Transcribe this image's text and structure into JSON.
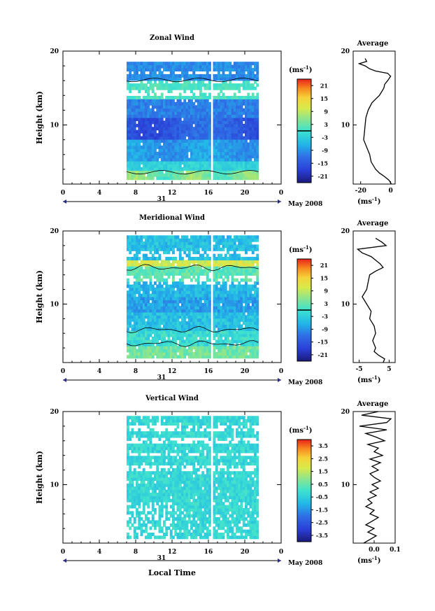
{
  "figure": {
    "date_label": "May 2008",
    "day_label": "31",
    "xlabel": "Local Time",
    "ylabel": "Height (km)",
    "colorbar_unit_base": "(ms",
    "colorbar_unit_exp": "-1",
    "colorbar_unit_close": ")",
    "avg_title": "Average",
    "avg_unit_base": "(ms",
    "avg_unit_exp": "-1",
    "avg_unit_close": ")"
  },
  "chart_data": [
    {
      "type": "heatmap",
      "title": "Zonal Wind",
      "xlabel": "Local Time",
      "ylabel": "Height (km)",
      "xlim": [
        0,
        24
      ],
      "ylim": [
        2,
        20
      ],
      "xticks": [
        "0",
        "4",
        "8",
        "12",
        "16",
        "20",
        "0"
      ],
      "yticks": [
        "10",
        "20"
      ],
      "data_time_range": [
        7,
        21.5
      ],
      "data_gap_hours": [
        16.2,
        16.5
      ],
      "contour_levels": [
        0
      ],
      "colorbar": {
        "unit": "ms-1",
        "ticks": [
          "21",
          "15",
          "9",
          "3",
          "-3",
          "-9",
          "-15",
          "-21"
        ],
        "range": [
          -24,
          24
        ],
        "zero_line": true
      },
      "profile": {
        "title": "Average",
        "xlabel": "ms-1",
        "xticks": [
          "-20",
          "0"
        ],
        "xlim": [
          -25,
          3
        ],
        "heights": [
          2.0,
          2.5,
          3.0,
          3.5,
          4.0,
          5.0,
          6.0,
          7.0,
          8.0,
          9.0,
          10.0,
          11.0,
          12.0,
          13.0,
          13.5,
          14.0,
          14.5,
          15.0,
          15.5,
          16.0,
          16.3,
          16.6,
          17.0,
          17.3,
          17.6,
          18.0,
          18.3,
          18.6,
          19.0
        ],
        "values": [
          0.5,
          -1.0,
          -4.0,
          -7.5,
          -10.0,
          -13.0,
          -14.0,
          -16.0,
          -18.0,
          -17.5,
          -17.0,
          -16.5,
          -15.0,
          -12.5,
          -10.0,
          -7.5,
          -6.0,
          -4.5,
          -4.0,
          -2.0,
          -1.0,
          0.0,
          -2.0,
          -10.0,
          -14.0,
          -17.0,
          -21.0,
          -16.0,
          -17.0
        ]
      }
    },
    {
      "type": "heatmap",
      "title": "Meridional Wind",
      "xlabel": "Local Time",
      "ylabel": "Height (km)",
      "xlim": [
        0,
        24
      ],
      "ylim": [
        2,
        20
      ],
      "xticks": [
        "0",
        "4",
        "8",
        "12",
        "16",
        "20",
        "0"
      ],
      "yticks": [
        "10",
        "20"
      ],
      "data_time_range": [
        7,
        21.5
      ],
      "data_gap_hours": [
        16.2,
        16.5
      ],
      "contour_levels": [
        0
      ],
      "colorbar": {
        "unit": "ms-1",
        "ticks": [
          "21",
          "15",
          "9",
          "3",
          "-3",
          "-9",
          "-15",
          "-21"
        ],
        "range": [
          -24,
          24
        ],
        "zero_line": true
      },
      "profile": {
        "title": "Average",
        "xlabel": "ms-1",
        "xticks": [
          "-5",
          "5"
        ],
        "xlim": [
          -7,
          7
        ],
        "heights": [
          2.0,
          2.5,
          3.0,
          3.5,
          4.0,
          5.0,
          6.0,
          7.0,
          8.0,
          9.0,
          10.0,
          11.0,
          12.0,
          13.0,
          14.0,
          14.5,
          15.0,
          15.5,
          16.0,
          16.5,
          17.0,
          17.5,
          18.0,
          18.5,
          19.0
        ],
        "values": [
          3.0,
          3.5,
          1.5,
          0.0,
          0.5,
          -0.5,
          0.5,
          0.0,
          -1.5,
          -1.0,
          -2.5,
          -4.0,
          -2.5,
          -2.0,
          -1.5,
          0.5,
          3.0,
          2.0,
          0.5,
          -1.0,
          -4.0,
          -5.5,
          4.0,
          2.5,
          0.5
        ]
      }
    },
    {
      "type": "heatmap",
      "title": "Vertical Wind",
      "xlabel": "Local Time",
      "ylabel": "Height (km)",
      "xlim": [
        0,
        24
      ],
      "ylim": [
        2,
        20
      ],
      "xticks": [
        "0",
        "4",
        "8",
        "12",
        "16",
        "20",
        "0"
      ],
      "yticks": [
        "10",
        "20"
      ],
      "data_time_range": [
        7,
        21.5
      ],
      "data_gap_hours": [
        16.2,
        16.5
      ],
      "colorbar": {
        "unit": "ms-1",
        "ticks": [
          "3.5",
          "2.5",
          "1.5",
          "0.5",
          "-0.5",
          "-1.5",
          "-2.5",
          "-3.5"
        ],
        "range": [
          -4,
          4
        ],
        "zero_line": false
      },
      "profile": {
        "title": "Average",
        "xlabel": "ms-1",
        "xticks": [
          "0.0",
          "0.1"
        ],
        "xlim": [
          -0.1,
          0.1
        ],
        "heights": [
          2.0,
          2.5,
          3.0,
          3.5,
          4.0,
          4.5,
          5.0,
          5.5,
          6.0,
          6.5,
          7.0,
          7.5,
          8.0,
          8.5,
          9.0,
          9.5,
          10.0,
          10.5,
          11.0,
          11.5,
          12.0,
          12.5,
          13.0,
          13.5,
          14.0,
          14.5,
          15.0,
          15.5,
          16.0,
          16.5,
          17.0,
          17.5,
          18.0,
          18.5,
          19.0,
          19.5,
          20.0
        ],
        "values": [
          -0.05,
          -0.02,
          0.01,
          -0.03,
          0.0,
          -0.04,
          -0.01,
          0.02,
          -0.02,
          0.0,
          -0.04,
          -0.01,
          -0.03,
          0.01,
          -0.02,
          0.02,
          -0.01,
          0.03,
          0.0,
          -0.02,
          0.02,
          -0.01,
          0.03,
          -0.02,
          0.04,
          0.0,
          0.02,
          -0.03,
          0.05,
          0.01,
          -0.04,
          0.06,
          -0.07,
          0.06,
          0.08,
          -0.06,
          0.02
        ]
      }
    }
  ]
}
